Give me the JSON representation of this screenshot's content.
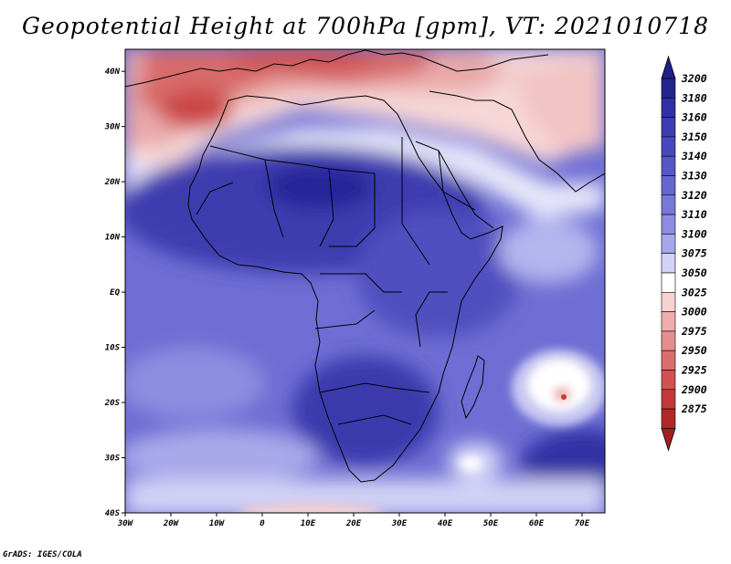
{
  "title": "Geopotential Height at 700hPa [gpm], VT: 2021010718",
  "footer": "GrADS: IGES/COLA",
  "map": {
    "lon_labels": [
      "30W",
      "20W",
      "10W",
      "0",
      "10E",
      "20E",
      "30E",
      "40E",
      "50E",
      "60E",
      "70E"
    ],
    "lat_labels": [
      "40N",
      "30N",
      "20N",
      "10N",
      "EQ",
      "10S",
      "20S",
      "30S",
      "40S"
    ],
    "lon_range": [
      -30,
      75
    ],
    "lat_range": [
      -40,
      44
    ]
  },
  "colorbar": {
    "levels": [
      "3200",
      "3180",
      "3160",
      "3150",
      "3140",
      "3130",
      "3120",
      "3110",
      "3100",
      "3075",
      "3050",
      "3025",
      "3000",
      "2975",
      "2950",
      "2925",
      "2900",
      "2875"
    ],
    "colors": [
      "#23238c",
      "#3030a6",
      "#3c3cb4",
      "#4848be",
      "#5656c8",
      "#6666d0",
      "#7878d8",
      "#8c8ce0",
      "#a6a6ea",
      "#d2d2f6",
      "#ffffff",
      "#f6d2d2",
      "#eeaeae",
      "#e48e8e",
      "#da6e6e",
      "#d25252",
      "#c43a3a",
      "#b02828"
    ],
    "top_color": "#20208a",
    "bottom_color": "#a22020"
  }
}
